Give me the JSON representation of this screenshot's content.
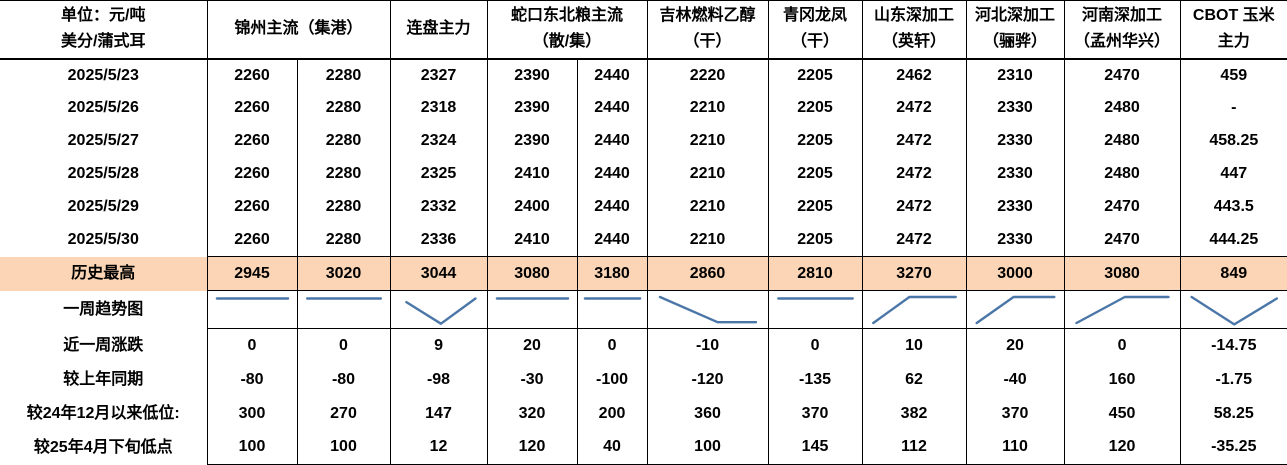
{
  "colors": {
    "highlight": "#FBD5B5",
    "spark": "#4B76A8",
    "border": "#000000"
  },
  "unit": {
    "lines": [
      "单位：元/吨",
      "美分/蒲式耳"
    ]
  },
  "header_groups": [
    {
      "lines": [
        "锦州主流（集港）"
      ],
      "span": 2
    },
    {
      "lines": [
        "连盘主力"
      ],
      "span": 1
    },
    {
      "lines": [
        "蛇口东北粮主流",
        "（散/集）"
      ],
      "span": 2
    },
    {
      "lines": [
        "吉林燃料乙醇",
        "（干）"
      ],
      "span": 1
    },
    {
      "lines": [
        "青冈龙凤",
        "（干）"
      ],
      "span": 1
    },
    {
      "lines": [
        "山东深加工",
        "（英轩）"
      ],
      "span": 1
    },
    {
      "lines": [
        "河北深加工",
        "（骊骅）"
      ],
      "span": 1
    },
    {
      "lines": [
        "河南深加工",
        "（孟州华兴）"
      ],
      "span": 1
    },
    {
      "lines": [
        "CBOT 玉米",
        "主力"
      ],
      "span": 1
    }
  ],
  "trend_row": {
    "label": "一周趋势图",
    "sparklines": [
      [
        [
          10,
          18
        ],
        [
          90,
          18
        ]
      ],
      [
        [
          10,
          18
        ],
        [
          90,
          18
        ]
      ],
      [
        [
          16,
          28
        ],
        [
          52,
          88
        ],
        [
          88,
          18
        ]
      ],
      [
        [
          10,
          18
        ],
        [
          90,
          18
        ]
      ],
      [
        [
          10,
          18
        ],
        [
          90,
          18
        ]
      ],
      [
        [
          10,
          14
        ],
        [
          58,
          84
        ],
        [
          90,
          84
        ]
      ],
      [
        [
          10,
          18
        ],
        [
          90,
          18
        ]
      ],
      [
        [
          10,
          86
        ],
        [
          45,
          14
        ],
        [
          90,
          14
        ]
      ],
      [
        [
          10,
          86
        ],
        [
          48,
          14
        ],
        [
          90,
          14
        ]
      ],
      [
        [
          10,
          86
        ],
        [
          52,
          14
        ],
        [
          90,
          14
        ]
      ],
      [
        [
          10,
          14
        ],
        [
          50,
          90
        ],
        [
          90,
          18
        ]
      ]
    ]
  },
  "chart_data": {
    "type": "table",
    "columns": [
      "单位：元/吨 美分/蒲式耳",
      "锦州主流（集港）",
      "锦州主流（集港）",
      "连盘主力",
      "蛇口东北粮主流（散/集）",
      "蛇口东北粮主流（散/集）",
      "吉林燃料乙醇（干）",
      "青冈龙凤（干）",
      "山东深加工（英轩）",
      "河北深加工（骊骅）",
      "河南深加工（孟州华兴）",
      "CBOT 玉米主力"
    ],
    "rows": [
      [
        "2025/5/23",
        2260,
        2280,
        2327,
        2390,
        2440,
        2220,
        2205,
        2462,
        2310,
        2470,
        459
      ],
      [
        "2025/5/26",
        2260,
        2280,
        2318,
        2390,
        2440,
        2210,
        2205,
        2472,
        2330,
        2480,
        "-"
      ],
      [
        "2025/5/27",
        2260,
        2280,
        2324,
        2390,
        2440,
        2210,
        2205,
        2472,
        2330,
        2480,
        458.25
      ],
      [
        "2025/5/28",
        2260,
        2280,
        2325,
        2410,
        2440,
        2210,
        2205,
        2472,
        2330,
        2480,
        447
      ],
      [
        "2025/5/29",
        2260,
        2280,
        2332,
        2400,
        2440,
        2210,
        2205,
        2472,
        2330,
        2470,
        443.5
      ],
      [
        "2025/5/30",
        2260,
        2280,
        2336,
        2410,
        2440,
        2210,
        2205,
        2472,
        2330,
        2470,
        444.25
      ],
      [
        "历史最高",
        2945,
        3020,
        3044,
        3080,
        3180,
        2860,
        2810,
        3270,
        3000,
        3080,
        849
      ],
      [
        "近一周涨跌",
        0,
        0,
        9,
        20,
        0,
        -10,
        0,
        10,
        20,
        0,
        -14.75
      ],
      [
        "较上年同期",
        -80,
        -80,
        -98,
        -30,
        -100,
        -120,
        -135,
        62,
        -40,
        160,
        -1.75
      ],
      [
        "较24年12月以来低位:",
        300,
        270,
        147,
        320,
        200,
        360,
        370,
        382,
        370,
        450,
        58.25
      ],
      [
        "较25年4月下旬低点",
        100,
        100,
        12,
        120,
        40,
        100,
        145,
        112,
        110,
        120,
        -35.25
      ]
    ]
  }
}
